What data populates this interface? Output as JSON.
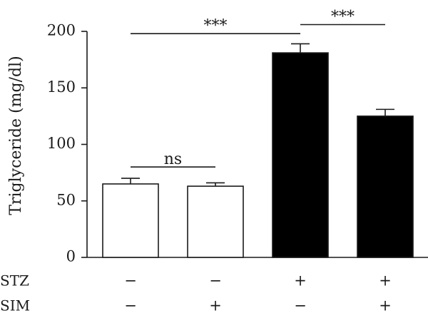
{
  "chart_data": {
    "type": "bar",
    "ylabel": "Triglyceride (mg/dl)",
    "ylim": [
      0,
      200
    ],
    "yticks": [
      0,
      50,
      100,
      150,
      200
    ],
    "grid": false,
    "bars": [
      {
        "value": 65,
        "error": 5,
        "fill": "#ffffff"
      },
      {
        "value": 63,
        "error": 3,
        "fill": "#ffffff"
      },
      {
        "value": 181,
        "error": 8,
        "fill": "#000000"
      },
      {
        "value": 125,
        "error": 6,
        "fill": "#000000"
      }
    ],
    "factors": [
      {
        "label": "STZ",
        "values": [
          "−",
          "−",
          "+",
          "+"
        ]
      },
      {
        "label": "SIM",
        "values": [
          "−",
          "+",
          "−",
          "+"
        ]
      }
    ],
    "significance": [
      {
        "from": 0,
        "to": 1,
        "label": "ns",
        "y": 80
      },
      {
        "from": 0,
        "to": 2,
        "label": "***",
        "y": 198
      },
      {
        "from": 2,
        "to": 3,
        "label": "***",
        "y": 206
      }
    ]
  }
}
